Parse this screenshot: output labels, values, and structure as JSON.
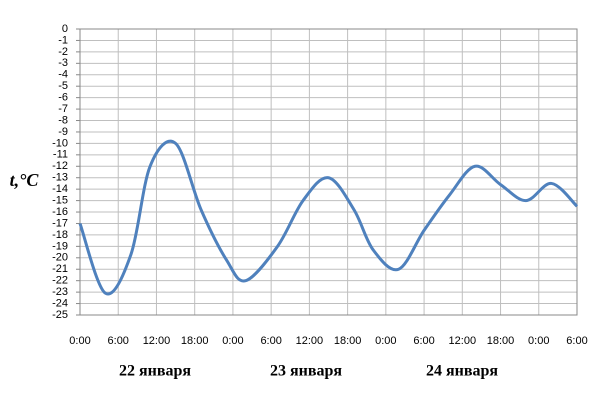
{
  "chart_data": {
    "type": "line",
    "y_label": "t,°C",
    "x": [
      0,
      4,
      8,
      11,
      15,
      19,
      23,
      26,
      31,
      35,
      39,
      43,
      46,
      50,
      54,
      58,
      62,
      66,
      70,
      74,
      78
    ],
    "series": [
      {
        "color": "#4f81bd",
        "values": [
          -17,
          -23.1,
          -19.7,
          -12,
          -10,
          -15.8,
          -20.2,
          -22,
          -19,
          -15,
          -13,
          -15.8,
          -19.3,
          -21,
          -17.6,
          -14.5,
          -12,
          -13.6,
          -15,
          -13.5,
          -15.5
        ]
      }
    ],
    "xlim": [
      0,
      78
    ],
    "xticks": [
      {
        "value": 0,
        "label": "0:00"
      },
      {
        "value": 6,
        "label": "6:00"
      },
      {
        "value": 12,
        "label": "12:00"
      },
      {
        "value": 18,
        "label": "18:00"
      },
      {
        "value": 24,
        "label": "0:00"
      },
      {
        "value": 30,
        "label": "6:00"
      },
      {
        "value": 36,
        "label": "12:00"
      },
      {
        "value": 42,
        "label": "18:00"
      },
      {
        "value": 48,
        "label": "0:00"
      },
      {
        "value": 54,
        "label": "6:00"
      },
      {
        "value": 60,
        "label": "12:00"
      },
      {
        "value": 66,
        "label": "18:00"
      },
      {
        "value": 72,
        "label": "0:00"
      },
      {
        "value": 78,
        "label": "6:00"
      }
    ],
    "day_labels": [
      "22 января",
      "23 января",
      "24 января"
    ],
    "ylim": [
      -25,
      0
    ],
    "yticks": [
      0,
      -1,
      -2,
      -3,
      -4,
      -5,
      -6,
      -7,
      -8,
      -9,
      -10,
      -11,
      -12,
      -13,
      -14,
      -15,
      -16,
      -17,
      -18,
      -19,
      -20,
      -21,
      -22,
      -23,
      -24,
      -25
    ],
    "grid": true
  }
}
